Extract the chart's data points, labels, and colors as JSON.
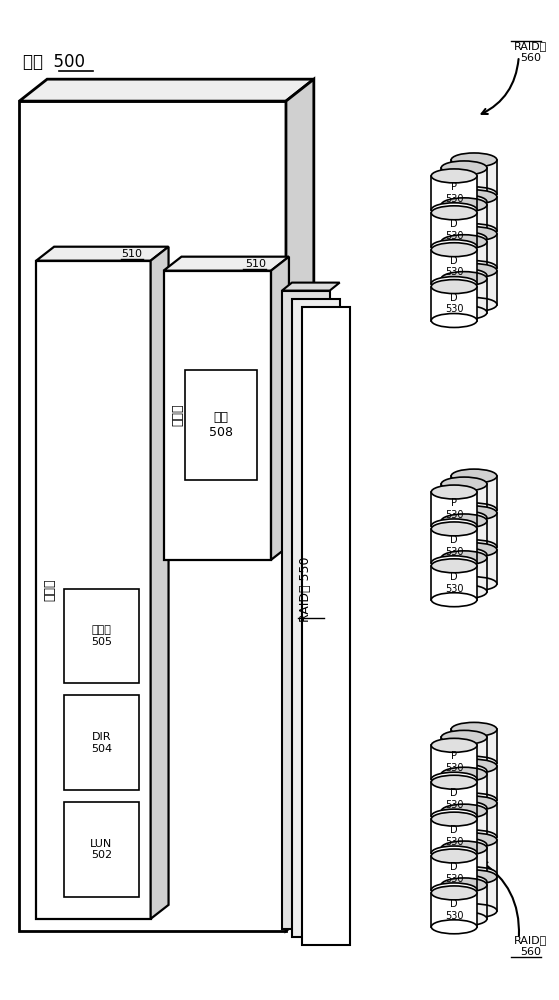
{
  "bg_color": "#ffffff",
  "aggregate_label": "聚合  500",
  "raid_bus_label": "RAID丛 550",
  "raid_group_label": "RAID群\n560",
  "flex_vol_label": "灵活卷",
  "label_510": "510",
  "lun_label": "LUN\n502",
  "dir_label": "DIR\n504",
  "quota_label": "配额树\n505",
  "file_label": "文件\n508",
  "top_disks": [
    "D\n530",
    "D\n530",
    "D\n530",
    "P\n530"
  ],
  "mid_disks": [
    "D\n530",
    "D\n530",
    "P\n530"
  ],
  "bot_disks": [
    "D\n530",
    "D\n530",
    "D\n530",
    "D\n530",
    "P\n530"
  ]
}
